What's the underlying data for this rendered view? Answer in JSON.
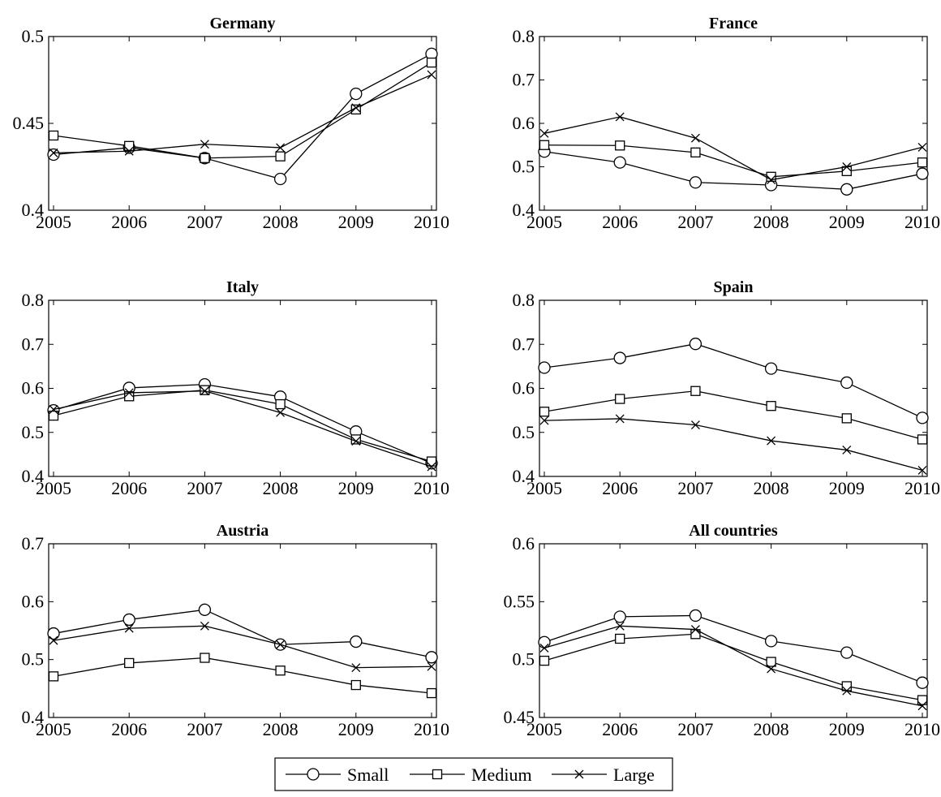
{
  "chart_data": [
    {
      "type": "line",
      "title": "Germany",
      "x": [
        2005,
        2006,
        2007,
        2008,
        2009,
        2010
      ],
      "ylim": [
        0.4,
        0.5
      ],
      "yticks": [
        "0.4",
        "0.45",
        "0.5"
      ],
      "series": [
        {
          "name": "Small",
          "marker": "circle",
          "values": [
            0.432,
            0.436,
            0.43,
            0.418,
            0.467,
            0.49
          ]
        },
        {
          "name": "Medium",
          "marker": "square",
          "values": [
            0.443,
            0.437,
            0.43,
            0.431,
            0.458,
            0.485
          ]
        },
        {
          "name": "Large",
          "marker": "x",
          "values": [
            0.433,
            0.434,
            0.438,
            0.436,
            0.459,
            0.478
          ]
        }
      ]
    },
    {
      "type": "line",
      "title": "France",
      "x": [
        2005,
        2006,
        2007,
        2008,
        2009,
        2010
      ],
      "ylim": [
        0.4,
        0.8
      ],
      "yticks": [
        "0.4",
        "0.5",
        "0.6",
        "0.7",
        "0.8"
      ],
      "series": [
        {
          "name": "Small",
          "marker": "circle",
          "values": [
            0.535,
            0.51,
            0.464,
            0.458,
            0.448,
            0.484
          ]
        },
        {
          "name": "Medium",
          "marker": "square",
          "values": [
            0.55,
            0.549,
            0.533,
            0.477,
            0.49,
            0.51
          ]
        },
        {
          "name": "Large",
          "marker": "x",
          "values": [
            0.577,
            0.615,
            0.566,
            0.47,
            0.5,
            0.545
          ]
        }
      ]
    },
    {
      "type": "line",
      "title": "Italy",
      "x": [
        2005,
        2006,
        2007,
        2008,
        2009,
        2010
      ],
      "ylim": [
        0.4,
        0.8
      ],
      "yticks": [
        "0.4",
        "0.5",
        "0.6",
        "0.7",
        "0.8"
      ],
      "series": [
        {
          "name": "Small",
          "marker": "circle",
          "values": [
            0.55,
            0.601,
            0.609,
            0.581,
            0.502,
            0.43
          ]
        },
        {
          "name": "Medium",
          "marker": "square",
          "values": [
            0.538,
            0.582,
            0.596,
            0.564,
            0.484,
            0.434
          ]
        },
        {
          "name": "Large",
          "marker": "x",
          "values": [
            0.552,
            0.59,
            0.594,
            0.545,
            0.48,
            0.422
          ]
        }
      ]
    },
    {
      "type": "line",
      "title": "Spain",
      "x": [
        2005,
        2006,
        2007,
        2008,
        2009,
        2010
      ],
      "ylim": [
        0.4,
        0.8
      ],
      "yticks": [
        "0.4",
        "0.5",
        "0.6",
        "0.7",
        "0.8"
      ],
      "series": [
        {
          "name": "Small",
          "marker": "circle",
          "values": [
            0.647,
            0.669,
            0.701,
            0.645,
            0.613,
            0.533
          ]
        },
        {
          "name": "Medium",
          "marker": "square",
          "values": [
            0.547,
            0.576,
            0.594,
            0.56,
            0.532,
            0.484
          ]
        },
        {
          "name": "Large",
          "marker": "x",
          "values": [
            0.527,
            0.531,
            0.517,
            0.481,
            0.46,
            0.414
          ]
        }
      ]
    },
    {
      "type": "line",
      "title": "Austria",
      "x": [
        2005,
        2006,
        2007,
        2008,
        2009,
        2010
      ],
      "ylim": [
        0.4,
        0.7
      ],
      "yticks": [
        "0.4",
        "0.5",
        "0.6",
        "0.7"
      ],
      "series": [
        {
          "name": "Small",
          "marker": "circle",
          "values": [
            0.545,
            0.569,
            0.586,
            0.526,
            0.531,
            0.504
          ]
        },
        {
          "name": "Medium",
          "marker": "square",
          "values": [
            0.471,
            0.494,
            0.503,
            0.481,
            0.456,
            0.442
          ]
        },
        {
          "name": "Large",
          "marker": "x",
          "values": [
            0.533,
            0.554,
            0.558,
            0.526,
            0.486,
            0.488
          ]
        }
      ]
    },
    {
      "type": "line",
      "title": "All countries",
      "x": [
        2005,
        2006,
        2007,
        2008,
        2009,
        2010
      ],
      "ylim": [
        0.45,
        0.6
      ],
      "yticks": [
        "0.45",
        "0.5",
        "0.55",
        "0.6"
      ],
      "series": [
        {
          "name": "Small",
          "marker": "circle",
          "values": [
            0.515,
            0.537,
            0.538,
            0.516,
            0.506,
            0.48
          ]
        },
        {
          "name": "Medium",
          "marker": "square",
          "values": [
            0.499,
            0.518,
            0.522,
            0.498,
            0.477,
            0.465
          ]
        },
        {
          "name": "Large",
          "marker": "x",
          "values": [
            0.51,
            0.529,
            0.526,
            0.492,
            0.473,
            0.46
          ]
        }
      ]
    }
  ],
  "legend": {
    "position": "bottom-center",
    "items": [
      {
        "label": "Small",
        "marker": "circle"
      },
      {
        "label": "Medium",
        "marker": "square"
      },
      {
        "label": "Large",
        "marker": "x"
      }
    ]
  }
}
